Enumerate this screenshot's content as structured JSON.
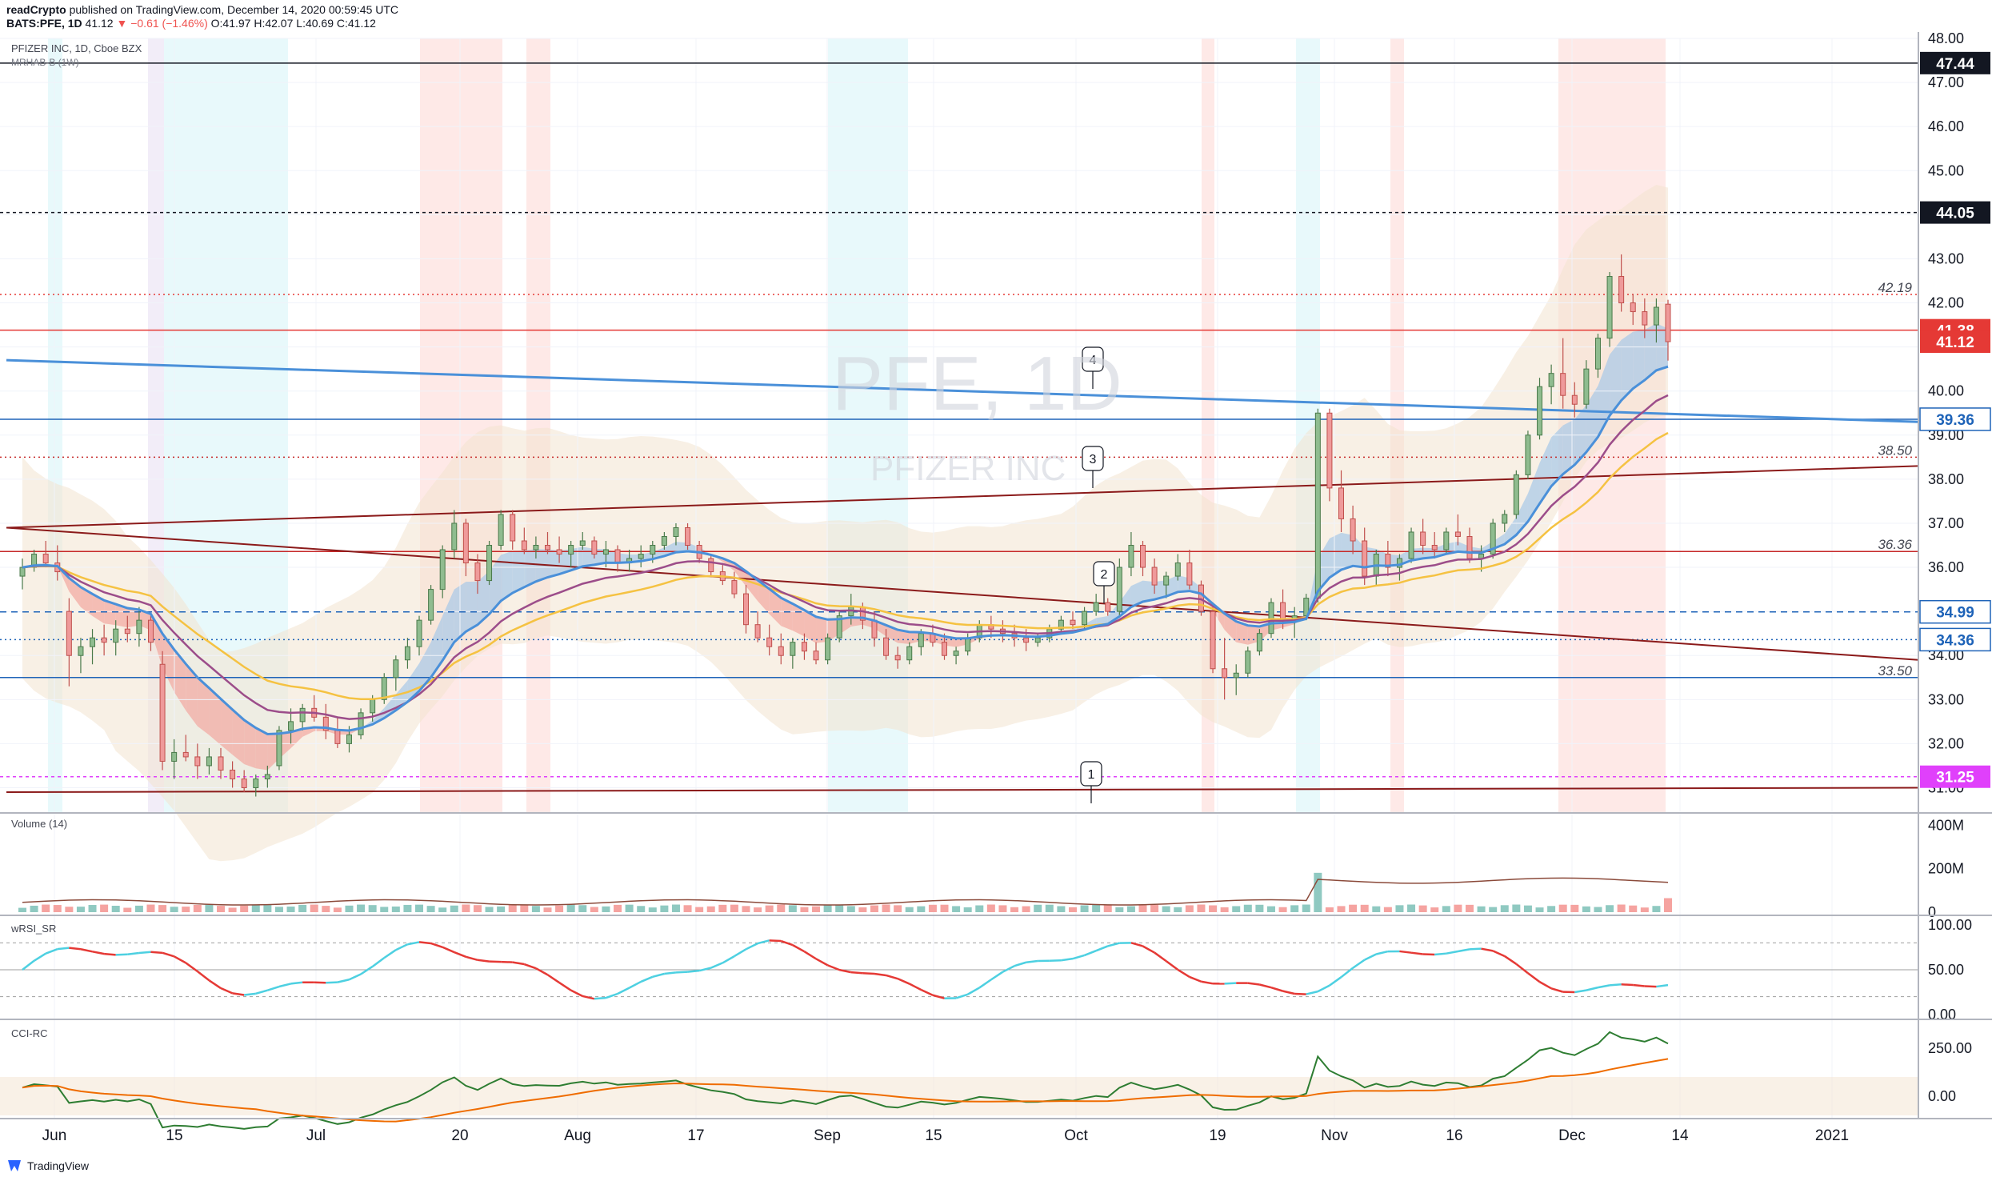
{
  "header": {
    "publisher": "readCrypto",
    "published_text": "published on TradingView.com, December 14, 2020 00:59:45 UTC",
    "symbol_line": "BATS:PFE, 1D",
    "last": "41.12",
    "change": "−0.61 (−1.46%)",
    "ohlc": {
      "o": "O:41.97",
      "h": "H:42.07",
      "l": "L:40.69",
      "c": "C:41.12"
    }
  },
  "main_pane": {
    "title": "PFIZER INC, 1D, Cboe BZX",
    "indicator": "MRHAB-B (1W)",
    "watermark_symbol": "PFE, 1D",
    "watermark_name": "PFIZER INC",
    "y_ticks": [
      "48.00",
      "47.00",
      "46.00",
      "45.00",
      "44.00",
      "43.00",
      "42.00",
      "41.00",
      "40.00",
      "39.00",
      "38.00",
      "37.00",
      "36.00",
      "35.00",
      "34.00",
      "33.00",
      "32.00",
      "31.00"
    ],
    "price_labels": [
      {
        "value": "47.44",
        "style": "black"
      },
      {
        "value": "44.05",
        "style": "black"
      },
      {
        "value": "41.38",
        "style": "red"
      },
      {
        "value": "41.12",
        "style": "red"
      },
      {
        "value": "39.36",
        "style": "blue"
      },
      {
        "value": "34.99",
        "style": "blue"
      },
      {
        "value": "34.36",
        "style": "blue"
      },
      {
        "value": "31.25",
        "style": "magenta"
      }
    ],
    "line_labels": [
      "42.19",
      "38.50",
      "36.36",
      "33.50"
    ],
    "callouts": [
      "1",
      "2",
      "3",
      "4"
    ]
  },
  "volume_pane": {
    "title": "Volume (14)",
    "y_ticks": [
      "400M",
      "200M",
      "0"
    ]
  },
  "rsi_pane": {
    "title": "wRSI_SR",
    "y_ticks": [
      "100.00",
      "50.00",
      "0.00"
    ]
  },
  "cci_pane": {
    "title": "CCI-RC",
    "y_ticks": [
      "250.00",
      "0.00"
    ]
  },
  "x_axis": {
    "ticks": [
      "Jun",
      "15",
      "Jul",
      "20",
      "Aug",
      "17",
      "Sep",
      "15",
      "Oct",
      "19",
      "Nov",
      "16",
      "Dec",
      "14",
      "2021"
    ]
  },
  "branding": "TradingView",
  "colors": {
    "up": "#26a69a",
    "down": "#ef5350",
    "blue_line": "#4a90d9",
    "red_line": "#8b1a1a",
    "magenta": "#e040fb"
  },
  "chart_data": {
    "type": "candlestick",
    "title": "PFIZER INC, 1D, Cboe BZX",
    "ylim": [
      30.9,
      48.2
    ],
    "candles_ohlc": [
      [
        35.8,
        36.2,
        35.5,
        36.0
      ],
      [
        36.0,
        36.4,
        35.9,
        36.3
      ],
      [
        36.3,
        36.6,
        36.0,
        36.1
      ],
      [
        36.1,
        36.5,
        35.7,
        35.9
      ],
      [
        35.0,
        35.3,
        33.3,
        34.0
      ],
      [
        34.0,
        34.4,
        33.6,
        34.2
      ],
      [
        34.2,
        34.6,
        33.8,
        34.4
      ],
      [
        34.4,
        34.7,
        34.0,
        34.3
      ],
      [
        34.3,
        34.8,
        34.0,
        34.6
      ],
      [
        34.6,
        34.9,
        34.3,
        34.5
      ],
      [
        34.5,
        35.1,
        34.2,
        34.8
      ],
      [
        34.8,
        34.9,
        34.1,
        34.3
      ],
      [
        33.8,
        34.1,
        31.4,
        31.6
      ],
      [
        31.6,
        32.1,
        31.2,
        31.8
      ],
      [
        31.8,
        32.2,
        31.6,
        31.7
      ],
      [
        31.7,
        32.0,
        31.2,
        31.5
      ],
      [
        31.5,
        31.9,
        31.3,
        31.7
      ],
      [
        31.7,
        31.9,
        31.2,
        31.4
      ],
      [
        31.4,
        31.6,
        31.0,
        31.2
      ],
      [
        31.2,
        31.4,
        30.9,
        31.0
      ],
      [
        31.0,
        31.3,
        30.8,
        31.2
      ],
      [
        31.2,
        31.5,
        31.0,
        31.3
      ],
      [
        31.5,
        32.4,
        31.4,
        32.3
      ],
      [
        32.3,
        32.8,
        32.0,
        32.5
      ],
      [
        32.5,
        32.9,
        32.3,
        32.8
      ],
      [
        32.8,
        33.1,
        32.5,
        32.6
      ],
      [
        32.6,
        32.9,
        32.1,
        32.3
      ],
      [
        32.3,
        32.6,
        31.9,
        32.0
      ],
      [
        32.0,
        32.4,
        31.8,
        32.2
      ],
      [
        32.2,
        32.8,
        32.1,
        32.7
      ],
      [
        32.7,
        33.1,
        32.5,
        33.0
      ],
      [
        33.0,
        33.6,
        32.9,
        33.5
      ],
      [
        33.5,
        34.0,
        33.2,
        33.9
      ],
      [
        33.9,
        34.4,
        33.7,
        34.2
      ],
      [
        34.2,
        34.9,
        34.0,
        34.8
      ],
      [
        34.8,
        35.6,
        34.7,
        35.5
      ],
      [
        35.5,
        36.5,
        35.3,
        36.4
      ],
      [
        36.4,
        37.3,
        36.2,
        37.0
      ],
      [
        37.0,
        37.1,
        35.8,
        36.1
      ],
      [
        36.1,
        36.3,
        35.4,
        35.7
      ],
      [
        35.7,
        36.6,
        35.6,
        36.5
      ],
      [
        36.5,
        37.3,
        36.4,
        37.2
      ],
      [
        37.2,
        37.3,
        36.4,
        36.6
      ],
      [
        36.6,
        36.9,
        36.3,
        36.4
      ],
      [
        36.4,
        36.7,
        36.2,
        36.5
      ],
      [
        36.5,
        36.8,
        36.3,
        36.4
      ],
      [
        36.4,
        36.7,
        36.1,
        36.3
      ],
      [
        36.3,
        36.6,
        36.0,
        36.5
      ],
      [
        36.5,
        36.8,
        36.4,
        36.6
      ],
      [
        36.6,
        36.7,
        36.2,
        36.3
      ],
      [
        36.3,
        36.6,
        36.0,
        36.4
      ],
      [
        36.4,
        36.5,
        35.9,
        36.1
      ],
      [
        36.1,
        36.4,
        35.9,
        36.2
      ],
      [
        36.2,
        36.5,
        36.0,
        36.3
      ],
      [
        36.3,
        36.6,
        36.1,
        36.5
      ],
      [
        36.5,
        36.8,
        36.4,
        36.7
      ],
      [
        36.7,
        37.0,
        36.5,
        36.9
      ],
      [
        36.9,
        37.0,
        36.4,
        36.5
      ],
      [
        36.5,
        36.6,
        36.1,
        36.2
      ],
      [
        36.2,
        36.3,
        35.8,
        35.9
      ],
      [
        35.9,
        36.1,
        35.6,
        35.7
      ],
      [
        35.7,
        35.9,
        35.3,
        35.4
      ],
      [
        35.4,
        35.6,
        34.5,
        34.7
      ],
      [
        34.7,
        35.0,
        34.3,
        34.4
      ],
      [
        34.4,
        34.7,
        34.0,
        34.2
      ],
      [
        34.2,
        34.5,
        33.8,
        34.0
      ],
      [
        34.0,
        34.4,
        33.7,
        34.3
      ],
      [
        34.3,
        34.5,
        33.9,
        34.1
      ],
      [
        34.1,
        34.3,
        33.8,
        33.9
      ],
      [
        33.9,
        34.5,
        33.8,
        34.4
      ],
      [
        34.4,
        35.0,
        34.3,
        34.9
      ],
      [
        34.9,
        35.4,
        34.7,
        35.1
      ],
      [
        35.1,
        35.2,
        34.6,
        34.8
      ],
      [
        34.8,
        35.0,
        34.2,
        34.4
      ],
      [
        34.4,
        34.6,
        33.9,
        34.0
      ],
      [
        34.0,
        34.2,
        33.7,
        33.9
      ],
      [
        33.9,
        34.3,
        33.8,
        34.2
      ],
      [
        34.2,
        34.6,
        34.0,
        34.5
      ],
      [
        34.5,
        34.7,
        34.2,
        34.3
      ],
      [
        34.3,
        34.5,
        33.9,
        34.0
      ],
      [
        34.0,
        34.2,
        33.8,
        34.1
      ],
      [
        34.1,
        34.5,
        34.0,
        34.4
      ],
      [
        34.4,
        34.8,
        34.3,
        34.7
      ],
      [
        34.7,
        34.9,
        34.4,
        34.6
      ],
      [
        34.6,
        34.8,
        34.3,
        34.5
      ],
      [
        34.5,
        34.7,
        34.2,
        34.4
      ],
      [
        34.4,
        34.6,
        34.1,
        34.3
      ],
      [
        34.3,
        34.5,
        34.2,
        34.4
      ],
      [
        34.4,
        34.7,
        34.3,
        34.6
      ],
      [
        34.6,
        34.9,
        34.5,
        34.8
      ],
      [
        34.8,
        35.0,
        34.6,
        34.7
      ],
      [
        34.7,
        35.1,
        34.6,
        35.0
      ],
      [
        35.0,
        35.4,
        34.9,
        35.2
      ],
      [
        35.2,
        35.3,
        34.9,
        35.0
      ],
      [
        35.0,
        36.2,
        34.9,
        36.0
      ],
      [
        36.0,
        36.8,
        35.8,
        36.5
      ],
      [
        36.5,
        36.6,
        35.8,
        36.0
      ],
      [
        36.0,
        36.2,
        35.4,
        35.6
      ],
      [
        35.6,
        35.9,
        35.3,
        35.8
      ],
      [
        35.8,
        36.3,
        35.7,
        36.1
      ],
      [
        36.1,
        36.4,
        35.5,
        35.6
      ],
      [
        35.6,
        35.7,
        34.9,
        35.0
      ],
      [
        35.0,
        35.2,
        33.6,
        33.7
      ],
      [
        33.7,
        34.4,
        33.0,
        33.5
      ],
      [
        33.5,
        33.8,
        33.1,
        33.6
      ],
      [
        33.6,
        34.2,
        33.5,
        34.1
      ],
      [
        34.1,
        34.6,
        34.0,
        34.5
      ],
      [
        34.5,
        35.3,
        34.4,
        35.2
      ],
      [
        35.2,
        35.5,
        34.6,
        34.8
      ],
      [
        34.8,
        35.1,
        34.4,
        34.9
      ],
      [
        34.9,
        35.4,
        34.8,
        35.3
      ],
      [
        35.3,
        39.6,
        35.2,
        39.5
      ],
      [
        39.5,
        39.6,
        37.5,
        37.8
      ],
      [
        37.8,
        38.2,
        36.8,
        37.1
      ],
      [
        37.1,
        37.4,
        36.3,
        36.6
      ],
      [
        36.6,
        36.9,
        35.6,
        35.8
      ],
      [
        35.8,
        36.4,
        35.6,
        36.3
      ],
      [
        36.3,
        36.6,
        35.8,
        36.0
      ],
      [
        36.0,
        36.3,
        35.7,
        36.2
      ],
      [
        36.2,
        36.9,
        36.1,
        36.8
      ],
      [
        36.8,
        37.1,
        36.3,
        36.5
      ],
      [
        36.5,
        36.8,
        36.2,
        36.4
      ],
      [
        36.4,
        36.9,
        36.3,
        36.8
      ],
      [
        36.8,
        37.2,
        36.5,
        36.7
      ],
      [
        36.7,
        36.9,
        36.1,
        36.2
      ],
      [
        36.2,
        36.5,
        35.9,
        36.3
      ],
      [
        36.3,
        37.1,
        36.2,
        37.0
      ],
      [
        37.0,
        37.3,
        36.8,
        37.2
      ],
      [
        37.2,
        38.2,
        37.1,
        38.1
      ],
      [
        38.1,
        39.1,
        38.0,
        39.0
      ],
      [
        39.0,
        40.3,
        38.9,
        40.1
      ],
      [
        40.1,
        40.6,
        39.7,
        40.4
      ],
      [
        40.4,
        41.2,
        39.6,
        39.9
      ],
      [
        39.9,
        40.2,
        39.4,
        39.7
      ],
      [
        39.7,
        40.7,
        39.6,
        40.5
      ],
      [
        40.5,
        41.3,
        40.3,
        41.2
      ],
      [
        41.2,
        42.7,
        41.0,
        42.6
      ],
      [
        42.6,
        43.1,
        41.8,
        42.0
      ],
      [
        42.0,
        42.2,
        41.5,
        41.8
      ],
      [
        41.8,
        42.1,
        41.2,
        41.5
      ],
      [
        41.5,
        42.1,
        41.1,
        41.9
      ],
      [
        41.97,
        42.07,
        40.69,
        41.12
      ]
    ],
    "trendlines": [
      {
        "name": "1",
        "from_price": 30.9,
        "to_price": 31.0
      },
      {
        "name": "2",
        "from_price": 36.9,
        "to_price": 33.9
      },
      {
        "name": "3",
        "from_price": 36.9,
        "to_price": 38.3
      },
      {
        "name": "4",
        "from_price": 40.7,
        "to_price": 39.3
      }
    ],
    "horizontal_levels": [
      47.44,
      44.05,
      42.19,
      41.38,
      39.36,
      38.5,
      36.36,
      34.99,
      34.36,
      33.5,
      31.25
    ]
  }
}
